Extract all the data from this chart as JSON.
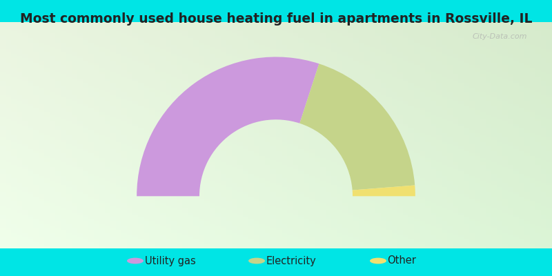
{
  "title": "Most commonly used house heating fuel in apartments in Rossville, IL",
  "segments": [
    {
      "label": "Utility gas",
      "value": 60.0,
      "color": "#cc99dd"
    },
    {
      "label": "Electricity",
      "value": 37.5,
      "color": "#c5d48a"
    },
    {
      "label": "Other",
      "value": 2.5,
      "color": "#f0e070"
    }
  ],
  "bg_color": "#00e5e5",
  "chart_bg_color": "#d8eedd",
  "title_color": "#222222",
  "title_fontsize": 13.5,
  "legend_fontsize": 10.5,
  "watermark": "City-Data.com",
  "outer_r": 0.8,
  "inner_r": 0.44
}
